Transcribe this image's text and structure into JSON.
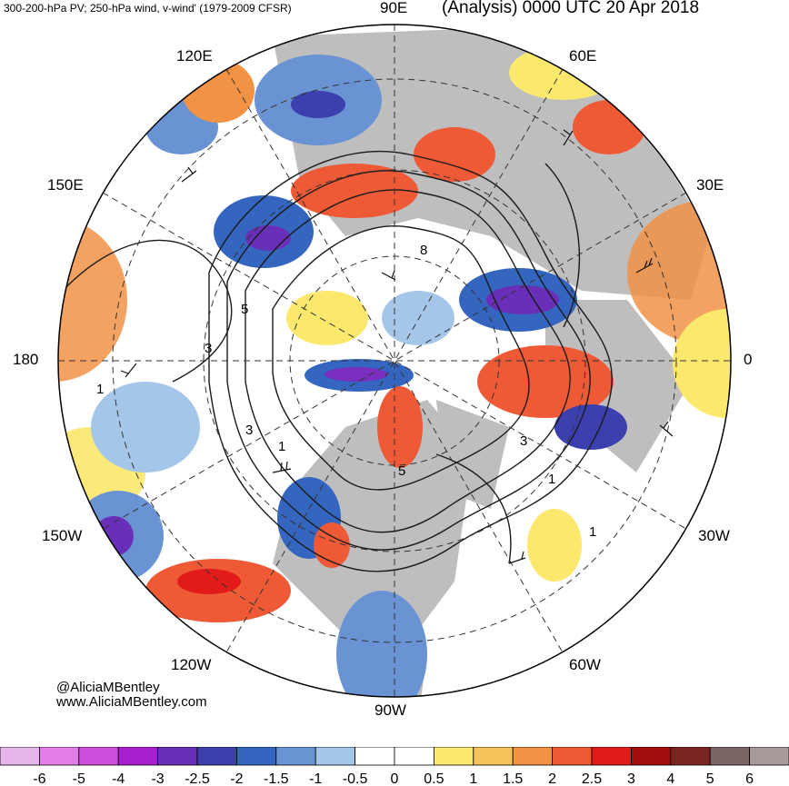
{
  "header": {
    "left": "300-200-hPa PV; 250-hPa wind, v-wind' (1979-2009 CFSR)",
    "right": "(Analysis) 0000 UTC 20 Apr 2018"
  },
  "longitude_labels": {
    "lon_90e": "90E",
    "lon_60e": "60E",
    "lon_120e": "120E",
    "lon_30e": "30E",
    "lon_150e": "150E",
    "lon_180": "180",
    "lon_0": "0",
    "lon_150w": "150W",
    "lon_30w": "30W",
    "lon_120w": "120W",
    "lon_60w": "60W",
    "lon_90w": "90W"
  },
  "contour_labels": [
    "5",
    "3",
    "1",
    "8",
    "3",
    "5",
    "1",
    "1",
    "3",
    "1"
  ],
  "credit": {
    "handle": "@AliciaMBentley",
    "website": "www.AliciaMBentley.com"
  },
  "colorbar": {
    "colors": [
      "#e8b4ec",
      "#e27ee6",
      "#cc4fdc",
      "#a91fd0",
      "#6a2fb8",
      "#3c3fae",
      "#3466c0",
      "#6a93d4",
      "#a4c6e8",
      "#ffffff",
      "#ffffff",
      "#fbe86c",
      "#f5c35a",
      "#f29245",
      "#ee5a35",
      "#e11a1a",
      "#a20c0c",
      "#7a2424",
      "#7a6464",
      "#a89a9a"
    ],
    "tick_labels": [
      "-6",
      "-5",
      "-4",
      "-3",
      "-2.5",
      "-2",
      "-1.5",
      "-1",
      "-0.5",
      "0",
      "0.5",
      "1",
      "1.5",
      "2",
      "2.5",
      "3",
      "4",
      "5",
      "6"
    ]
  },
  "map_colors": {
    "land": "#bebebe",
    "ocean": "#ffffff",
    "positive_anomaly": "#f29245",
    "strong_positive": "#e11a1a",
    "negative_anomaly": "#6a93d4",
    "strong_negative": "#3c3fae",
    "extreme_negative": "#7a2ec0",
    "contour": "#1a1a1a"
  }
}
